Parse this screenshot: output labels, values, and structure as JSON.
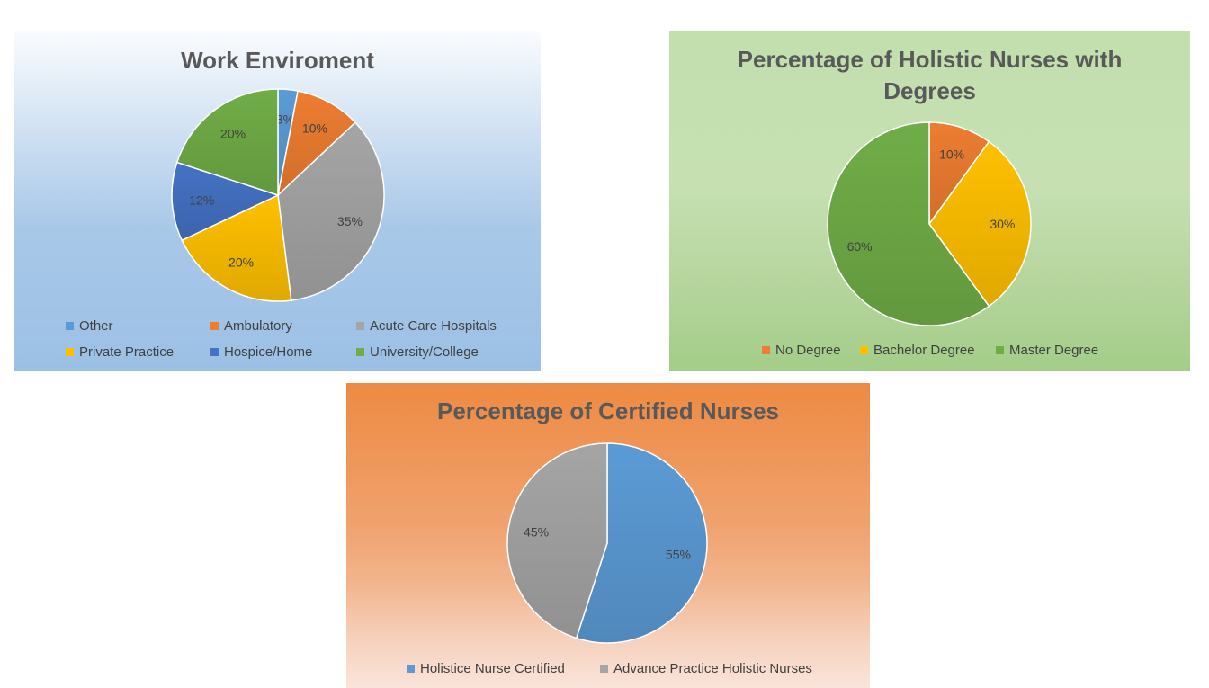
{
  "chart_data": [
    {
      "type": "pie",
      "title": "Work Enviroment",
      "categories": [
        "Other",
        "Ambulatory",
        "Acute Care Hospitals",
        "Private Practice",
        "Hospice/Home",
        "University/College"
      ],
      "values": [
        3,
        10,
        35,
        20,
        12,
        20
      ],
      "labels": [
        "3%",
        "10%",
        "35%",
        "20%",
        "12%",
        "20%"
      ],
      "colors": [
        "#5b9bd5",
        "#ed7d31",
        "#a5a5a5",
        "#ffc000",
        "#4472c4",
        "#70ad47"
      ],
      "legend_position": "bottom"
    },
    {
      "type": "pie",
      "title": "Percentage of Holistic Nurses with Degrees",
      "title_lines": [
        "Percentage of Holistic Nurses with",
        "Degrees"
      ],
      "categories": [
        "No Degree",
        "Bachelor Degree",
        "Master Degree"
      ],
      "values": [
        10,
        30,
        60
      ],
      "labels": [
        "10%",
        "30%",
        "60%"
      ],
      "colors": [
        "#ed7d31",
        "#ffc000",
        "#70ad47"
      ],
      "legend_position": "bottom"
    },
    {
      "type": "pie",
      "title": "Percentage of Certified Nurses",
      "categories": [
        "Holistice Nurse Certified",
        "Advance Practice Holistic Nurses"
      ],
      "values": [
        55,
        45
      ],
      "labels": [
        "55%",
        "45%"
      ],
      "colors": [
        "#5b9bd5",
        "#a5a5a5"
      ],
      "legend_position": "bottom"
    }
  ]
}
